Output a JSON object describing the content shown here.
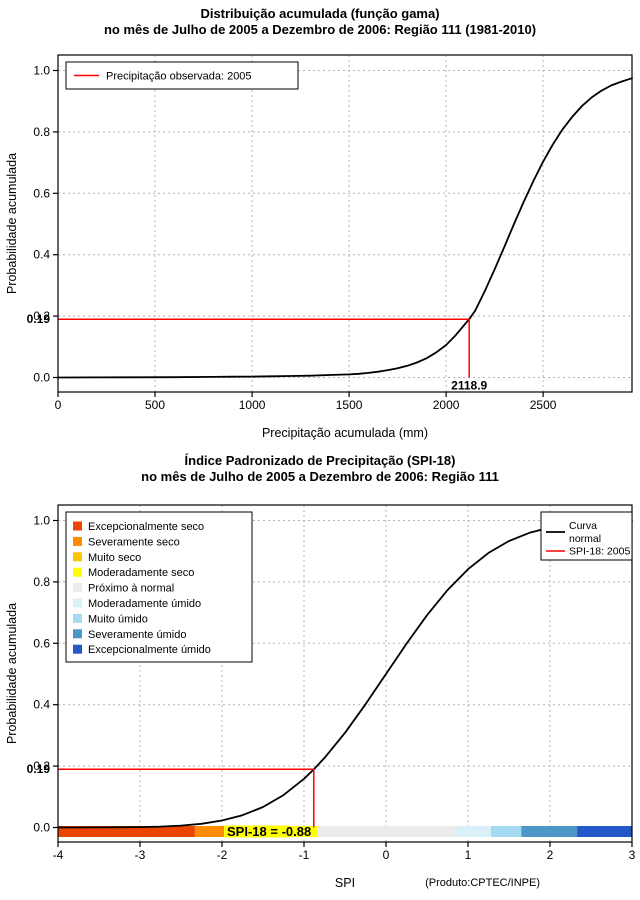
{
  "colors": {
    "marker_red": "#FF0000",
    "curve_black": "#000000",
    "grid_gray": "#B4B4B4",
    "background": "#FFFFFF"
  },
  "chart_data": [
    {
      "type": "line",
      "title": "Distribuição acumulada (função gama)",
      "subtitle": "no mês de Julho de 2005 a Dezembro de 2006: Região 111 (1981-2010)",
      "xlabel": "Precipitação acumulada (mm)",
      "ylabel": "Probabilidade acumulada",
      "xlim": [
        0,
        2958
      ],
      "ylim": [
        0,
        1
      ],
      "x_ticks": [
        0,
        500,
        1000,
        1500,
        2000,
        2500
      ],
      "y_ticks": [
        "0.0",
        "0.2",
        "0.4",
        "0.6",
        "0.8",
        "1.0"
      ],
      "grid": true,
      "legend": {
        "position": "top-left",
        "items": [
          {
            "label": "Precipitação observada: 2005",
            "color": "#FF0000",
            "type": "line"
          }
        ]
      },
      "series": [
        {
          "name": "Distribuição gama acumulada",
          "color": "#000000",
          "x": [
            0,
            200,
            400,
            600,
            800,
            900,
            1000,
            1100,
            1200,
            1300,
            1400,
            1500,
            1550,
            1600,
            1650,
            1700,
            1750,
            1800,
            1850,
            1900,
            1950,
            2000,
            2050,
            2100,
            2118.9,
            2150,
            2200,
            2250,
            2300,
            2350,
            2400,
            2450,
            2500,
            2550,
            2600,
            2650,
            2700,
            2750,
            2800,
            2850,
            2900,
            2958
          ],
          "y": [
            0,
            0.0002,
            0.0005,
            0.001,
            0.002,
            0.0025,
            0.003,
            0.004,
            0.005,
            0.006,
            0.008,
            0.01,
            0.012,
            0.015,
            0.019,
            0.024,
            0.03,
            0.038,
            0.049,
            0.063,
            0.082,
            0.106,
            0.138,
            0.176,
            0.19,
            0.218,
            0.282,
            0.352,
            0.425,
            0.5,
            0.572,
            0.64,
            0.703,
            0.759,
            0.808,
            0.849,
            0.884,
            0.912,
            0.934,
            0.951,
            0.963,
            0.975
          ]
        }
      ],
      "marker": {
        "x": 2118.9,
        "y": 0.19,
        "x_label": "2118.9",
        "y_label": "0.19",
        "color": "#FF0000"
      }
    },
    {
      "type": "line",
      "title": "Índice Padronizado de Precipitação (SPI-18)",
      "subtitle": "no mês de Julho de 2005 a Dezembro de 2006: Região 111",
      "xlabel": "SPI",
      "ylabel": "Probabilidade acumulada",
      "footnote": "(Produto:CPTEC/INPE)",
      "xlim": [
        -4,
        3
      ],
      "ylim": [
        0,
        1
      ],
      "x_ticks": [
        -4,
        -3,
        -2,
        -1,
        0,
        1,
        2,
        3
      ],
      "y_ticks": [
        "0.0",
        "0.2",
        "0.4",
        "0.6",
        "0.8",
        "1.0"
      ],
      "grid": true,
      "category_legend": {
        "position": "top-left",
        "items": [
          {
            "label": "Excepcionalmente seco",
            "color": "#EB4600"
          },
          {
            "label": "Severamente seco",
            "color": "#FF8C00"
          },
          {
            "label": "Muito seco",
            "color": "#FFC300"
          },
          {
            "label": "Moderadamente seco",
            "color": "#FFFF00"
          },
          {
            "label": "Próximo à normal",
            "color": "#EBEBEB"
          },
          {
            "label": "Moderadamente úmido",
            "color": "#D9F0F8"
          },
          {
            "label": "Muito úmido",
            "color": "#A5DBF0"
          },
          {
            "label": "Severamente úmido",
            "color": "#4D96C8"
          },
          {
            "label": "Excepcionalmente úmido",
            "color": "#2457C8"
          }
        ]
      },
      "line_legend": {
        "position": "top-right",
        "items": [
          {
            "label": "Curva normal",
            "label_lines": [
              "Curva",
              "normal"
            ],
            "color": "#000000"
          },
          {
            "label": "SPI-18: 2005",
            "label_lines": [
              "SPI-18: 2005"
            ],
            "color": "#FF0000"
          }
        ]
      },
      "series": [
        {
          "name": "Curva normal",
          "color": "#000000",
          "x": [
            -4,
            -3.5,
            -3,
            -2.75,
            -2.5,
            -2.25,
            -2,
            -1.75,
            -1.5,
            -1.25,
            -1,
            -0.88,
            -0.75,
            -0.5,
            -0.25,
            0,
            0.25,
            0.5,
            0.75,
            1,
            1.25,
            1.5,
            1.75,
            2,
            2.25,
            2.5,
            2.75,
            3
          ],
          "y": [
            0.0,
            0.0002,
            0.0013,
            0.003,
            0.0062,
            0.0122,
            0.0228,
            0.0401,
            0.0668,
            0.1056,
            0.1587,
            0.1894,
            0.2266,
            0.3085,
            0.4013,
            0.5,
            0.5987,
            0.6915,
            0.7734,
            0.8413,
            0.8944,
            0.9332,
            0.9599,
            0.9772,
            0.9878,
            0.9938,
            0.997,
            0.9987
          ]
        }
      ],
      "marker": {
        "x": -0.88,
        "y": 0.19,
        "y_label": "0.19",
        "color": "#FF0000"
      },
      "annotation": {
        "highlight": "#FFFF00",
        "parts": [
          {
            "text": "SPI-18",
            "bg": "#FFFF00"
          },
          {
            "text": " = -0.88",
            "bg": null
          }
        ]
      },
      "color_bar": {
        "segments": [
          {
            "from": -4,
            "to": -2.33,
            "color": "#EB4600",
            "label": "Excepcionalmente seco"
          },
          {
            "from": -2.33,
            "to": -1.65,
            "color": "#FF8C00",
            "label": "Severamente seco"
          },
          {
            "from": -1.65,
            "to": -1.28,
            "color": "#FFC300",
            "label": "Muito seco"
          },
          {
            "from": -1.28,
            "to": -0.84,
            "color": "#FFFF00",
            "label": "Moderadamente seco"
          },
          {
            "from": -0.84,
            "to": 0.84,
            "color": "#EBEBEB",
            "label": "Próximo à normal"
          },
          {
            "from": 0.84,
            "to": 1.28,
            "color": "#D9F0F8",
            "label": "Moderadamente úmido"
          },
          {
            "from": 1.28,
            "to": 1.65,
            "color": "#A5DBF0",
            "label": "Muito úmido"
          },
          {
            "from": 1.65,
            "to": 2.33,
            "color": "#4D96C8",
            "label": "Severamente úmido"
          },
          {
            "from": 2.33,
            "to": 3,
            "color": "#2457C8",
            "label": "Excepcionalmente úmido"
          }
        ]
      }
    }
  ]
}
